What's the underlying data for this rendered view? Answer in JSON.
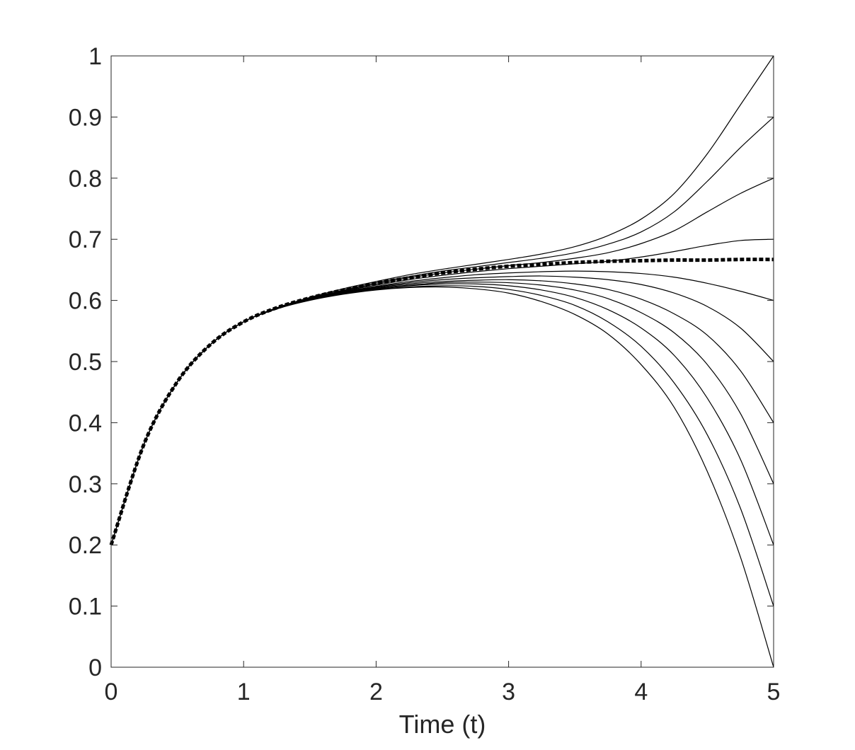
{
  "chart_data": {
    "type": "line",
    "title": "",
    "xlabel": "Time (t)",
    "ylabel": "",
    "xlim": [
      0,
      5
    ],
    "ylim": [
      0,
      1
    ],
    "grid": false,
    "xticks": [
      "0",
      "1",
      "2",
      "3",
      "4",
      "5"
    ],
    "yticks": [
      "0",
      "0.1",
      "0.2",
      "0.3",
      "0.4",
      "0.5",
      "0.6",
      "0.7",
      "0.8",
      "0.9",
      "1"
    ],
    "x": [
      0,
      0.25,
      0.5,
      0.75,
      1,
      1.25,
      1.5,
      1.75,
      2,
      2.25,
      2.5,
      2.75,
      3,
      3.25,
      3.5,
      3.75,
      4,
      4.25,
      4.5,
      4.75,
      5
    ],
    "series": [
      {
        "style": "solid",
        "values": [
          0.2,
          0.366,
          0.467,
          0.528,
          0.565,
          0.588,
          0.605,
          0.619,
          0.631,
          0.642,
          0.651,
          0.659,
          0.667,
          0.676,
          0.688,
          0.706,
          0.733,
          0.775,
          0.84,
          0.92,
          1.0
        ]
      },
      {
        "style": "solid",
        "values": [
          0.2,
          0.366,
          0.467,
          0.528,
          0.565,
          0.588,
          0.604,
          0.617,
          0.629,
          0.639,
          0.648,
          0.655,
          0.662,
          0.669,
          0.678,
          0.692,
          0.712,
          0.745,
          0.795,
          0.85,
          0.9
        ]
      },
      {
        "style": "solid",
        "values": [
          0.2,
          0.366,
          0.467,
          0.528,
          0.565,
          0.588,
          0.603,
          0.616,
          0.627,
          0.637,
          0.645,
          0.651,
          0.657,
          0.662,
          0.669,
          0.678,
          0.693,
          0.714,
          0.745,
          0.775,
          0.8
        ]
      },
      {
        "style": "solid",
        "values": [
          0.2,
          0.366,
          0.467,
          0.528,
          0.565,
          0.587,
          0.603,
          0.615,
          0.625,
          0.634,
          0.641,
          0.647,
          0.652,
          0.656,
          0.66,
          0.664,
          0.671,
          0.68,
          0.69,
          0.698,
          0.7
        ]
      },
      {
        "style": "solid",
        "values": [
          0.2,
          0.366,
          0.467,
          0.528,
          0.565,
          0.587,
          0.602,
          0.614,
          0.623,
          0.631,
          0.637,
          0.642,
          0.645,
          0.647,
          0.648,
          0.647,
          0.644,
          0.638,
          0.628,
          0.615,
          0.6
        ]
      },
      {
        "style": "solid",
        "values": [
          0.2,
          0.366,
          0.467,
          0.528,
          0.565,
          0.587,
          0.602,
          0.613,
          0.622,
          0.629,
          0.634,
          0.637,
          0.639,
          0.64,
          0.638,
          0.634,
          0.626,
          0.612,
          0.59,
          0.555,
          0.5
        ]
      },
      {
        "style": "solid",
        "values": [
          0.2,
          0.366,
          0.467,
          0.528,
          0.565,
          0.587,
          0.602,
          0.613,
          0.621,
          0.627,
          0.631,
          0.633,
          0.634,
          0.632,
          0.627,
          0.618,
          0.602,
          0.578,
          0.543,
          0.485,
          0.4
        ]
      },
      {
        "style": "solid",
        "values": [
          0.2,
          0.366,
          0.467,
          0.528,
          0.565,
          0.587,
          0.601,
          0.612,
          0.62,
          0.625,
          0.629,
          0.63,
          0.629,
          0.625,
          0.617,
          0.603,
          0.58,
          0.547,
          0.495,
          0.415,
          0.3
        ]
      },
      {
        "style": "solid",
        "values": [
          0.2,
          0.366,
          0.467,
          0.528,
          0.565,
          0.587,
          0.601,
          0.611,
          0.619,
          0.624,
          0.627,
          0.627,
          0.624,
          0.617,
          0.605,
          0.585,
          0.555,
          0.51,
          0.44,
          0.34,
          0.2
        ]
      },
      {
        "style": "solid",
        "values": [
          0.2,
          0.366,
          0.467,
          0.528,
          0.565,
          0.586,
          0.601,
          0.611,
          0.618,
          0.622,
          0.624,
          0.623,
          0.618,
          0.608,
          0.592,
          0.565,
          0.525,
          0.465,
          0.38,
          0.26,
          0.1
        ]
      },
      {
        "style": "solid",
        "values": [
          0.2,
          0.366,
          0.467,
          0.528,
          0.565,
          0.586,
          0.6,
          0.61,
          0.617,
          0.621,
          0.622,
          0.619,
          0.612,
          0.598,
          0.577,
          0.545,
          0.495,
          0.425,
          0.32,
          0.18,
          0.0
        ]
      },
      {
        "style": "dotted-thick",
        "values": [
          0.2,
          0.366,
          0.467,
          0.528,
          0.565,
          0.588,
          0.604,
          0.617,
          0.628,
          0.637,
          0.645,
          0.651,
          0.656,
          0.659,
          0.662,
          0.664,
          0.665,
          0.666,
          0.666,
          0.667,
          0.667
        ]
      }
    ]
  }
}
